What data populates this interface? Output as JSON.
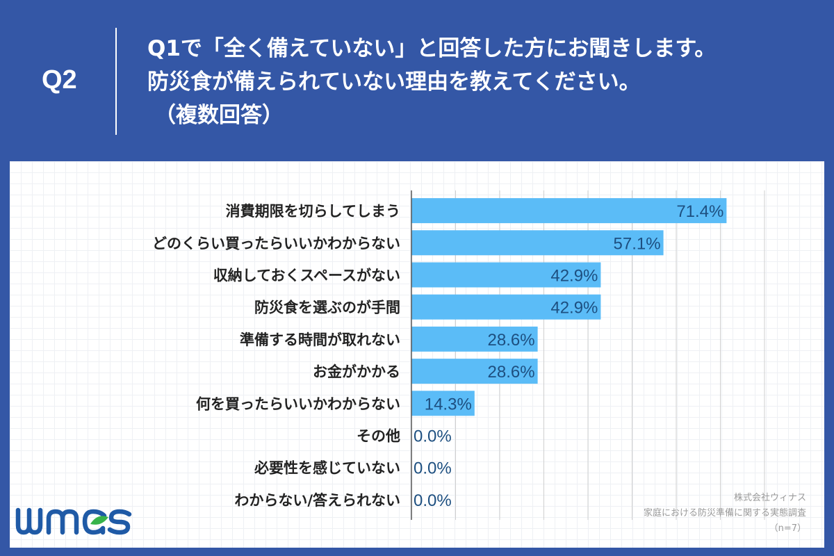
{
  "header": {
    "question_number": "Q2",
    "line1": "Q1で「全く備えていない」と回答した方にお聞きします。",
    "line2": "防災食が備えられていない理由を教えてください。",
    "line3": "（複数回答）"
  },
  "chart_data": {
    "type": "bar",
    "orientation": "horizontal",
    "categories": [
      "消費期限を切らしてしまう",
      "どのくらい買ったらいいかわからない",
      "収納しておくスペースがない",
      "防災食を選ぶのが手間",
      "準備する時間が取れない",
      "お金がかかる",
      "何を買ったらいいかわからない",
      "その他",
      "必要性を感じていない",
      "わからない/答えられない"
    ],
    "values": [
      71.4,
      57.1,
      42.9,
      42.9,
      28.6,
      28.6,
      14.3,
      0.0,
      0.0,
      0.0
    ],
    "value_labels": [
      "71.4%",
      "57.1%",
      "42.9%",
      "42.9%",
      "28.6%",
      "28.6%",
      "14.3%",
      "0.0%",
      "0.0%",
      "0.0%"
    ],
    "xlim": [
      0,
      80
    ],
    "grid": true,
    "bar_color": "#5bbcf7",
    "label_color": "#1d4f80"
  },
  "logo": {
    "text": "winas",
    "color": "#1f5aa6",
    "leaf_color": "#37b34a"
  },
  "credit": {
    "company": "株式会社ウィナス",
    "survey": "家庭における防災準備に関する実態調査",
    "sample": "（n=7）"
  }
}
